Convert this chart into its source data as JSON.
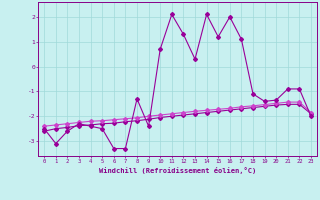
{
  "title": "",
  "xlabel": "Windchill (Refroidissement éolien,°C)",
  "ylabel": "",
  "background_color": "#c8f0f0",
  "line_color": "#990099",
  "trend_color1": "#990099",
  "trend_color2": "#cc44cc",
  "x_data": [
    0,
    1,
    2,
    3,
    4,
    5,
    6,
    7,
    8,
    9,
    10,
    11,
    12,
    13,
    14,
    15,
    16,
    17,
    18,
    19,
    20,
    21,
    22,
    23
  ],
  "y_data": [
    -2.5,
    -3.1,
    -2.6,
    -2.3,
    -2.4,
    -2.5,
    -3.3,
    -3.3,
    -1.3,
    -2.4,
    0.7,
    2.1,
    1.3,
    0.3,
    2.1,
    1.2,
    2.0,
    1.1,
    -1.1,
    -1.4,
    -1.35,
    -0.9,
    -0.9,
    -2.0
  ],
  "trend_data1": [
    -2.6,
    -2.5,
    -2.45,
    -2.38,
    -2.35,
    -2.3,
    -2.28,
    -2.22,
    -2.18,
    -2.12,
    -2.05,
    -2.0,
    -1.95,
    -1.9,
    -1.85,
    -1.8,
    -1.75,
    -1.7,
    -1.65,
    -1.6,
    -1.55,
    -1.52,
    -1.52,
    -1.9
  ],
  "trend_data2": [
    -2.4,
    -2.35,
    -2.3,
    -2.25,
    -2.2,
    -2.18,
    -2.14,
    -2.1,
    -2.06,
    -2.0,
    -1.95,
    -1.9,
    -1.85,
    -1.8,
    -1.76,
    -1.72,
    -1.68,
    -1.62,
    -1.58,
    -1.53,
    -1.48,
    -1.43,
    -1.43,
    -1.85
  ],
  "xlim": [
    -0.5,
    23.5
  ],
  "ylim": [
    -3.6,
    2.6
  ],
  "yticks": [
    -3,
    -2,
    -1,
    0,
    1,
    2
  ],
  "xticks": [
    0,
    1,
    2,
    3,
    4,
    5,
    6,
    7,
    8,
    9,
    10,
    11,
    12,
    13,
    14,
    15,
    16,
    17,
    18,
    19,
    20,
    21,
    22,
    23
  ],
  "grid_color": "#a0dada",
  "axis_color": "#880088",
  "tick_color": "#880088",
  "xlabel_color": "#880088",
  "marker": "D",
  "markersize": 2.0,
  "linewidth": 0.8
}
